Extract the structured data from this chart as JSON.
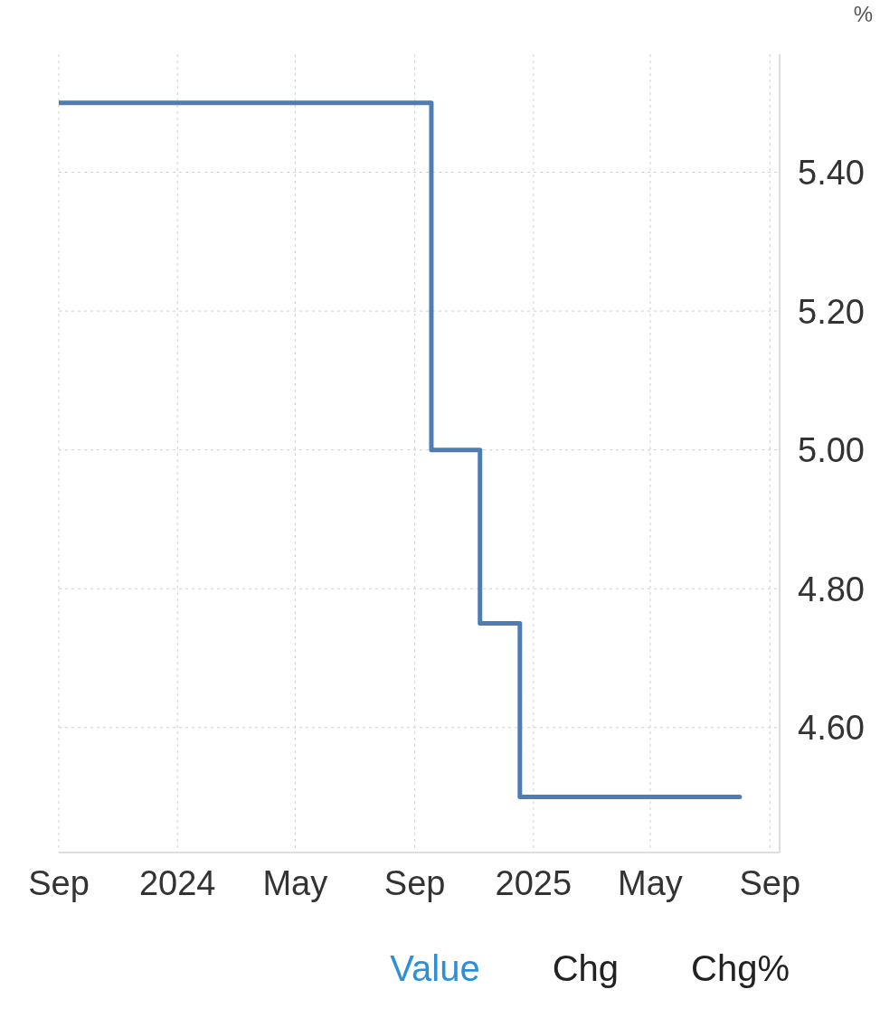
{
  "chart_data": {
    "type": "step",
    "ylabel": "%",
    "x": [
      "2023-09-01",
      "2024-09-18",
      "2024-11-07",
      "2024-12-18",
      "2025-08-01"
    ],
    "series": [
      {
        "color": "#4f7db3",
        "values": [
          5.5,
          5.0,
          4.75,
          4.5,
          4.5
        ]
      }
    ],
    "xlim": [
      "2023-09-01",
      "2025-09-11"
    ],
    "xticks": [
      {
        "value": "2023-09-01",
        "label": "Sep"
      },
      {
        "value": "2024-01-01",
        "label": "2024"
      },
      {
        "value": "2024-05-01",
        "label": "May"
      },
      {
        "value": "2024-09-01",
        "label": "Sep"
      },
      {
        "value": "2025-01-01",
        "label": "2025"
      },
      {
        "value": "2025-05-01",
        "label": "May"
      },
      {
        "value": "2025-09-01",
        "label": "Sep"
      }
    ],
    "ylim": [
      4.42,
      5.57
    ],
    "yticks": [
      {
        "value": 4.6,
        "label": "4.60"
      },
      {
        "value": 4.8,
        "label": "4.80"
      },
      {
        "value": 5.0,
        "label": "5.00"
      },
      {
        "value": 5.2,
        "label": "5.20"
      },
      {
        "value": 5.4,
        "label": "5.40"
      }
    ],
    "grid": true,
    "marker": "none",
    "line_style": "solid",
    "annotations": [
      "Value",
      "Chg",
      "Chg%"
    ]
  }
}
